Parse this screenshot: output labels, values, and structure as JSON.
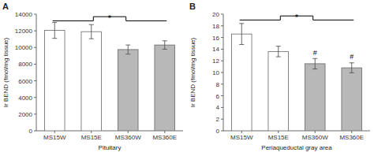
{
  "chart_data": [
    {
      "type": "bar",
      "title": "A",
      "categories": [
        "MS15W",
        "MS15E",
        "MS360W",
        "MS360E"
      ],
      "values": [
        12050,
        11900,
        9750,
        10300
      ],
      "errors": [
        950,
        850,
        550,
        500
      ],
      "colors": [
        "white",
        "white",
        "#b8b8b8",
        "#b8b8b8"
      ],
      "ylabel": "Ir BEND (fmol/mg tissue)",
      "xlabel": "Pituitary",
      "ylim": [
        0,
        14000
      ],
      "yticks": [
        0,
        2000,
        4000,
        6000,
        8000,
        10000,
        12000,
        14000
      ],
      "bracket": {
        "text": "*",
        "y_low": 13200,
        "y_high": 13700
      }
    },
    {
      "type": "bar",
      "title": "B",
      "categories": [
        "MS15W",
        "MS15E",
        "MS360W",
        "MS360E"
      ],
      "values": [
        16.6,
        13.6,
        11.5,
        10.8
      ],
      "errors": [
        1.8,
        0.9,
        0.9,
        0.85
      ],
      "colors": [
        "white",
        "white",
        "#b8b8b8",
        "#b8b8b8"
      ],
      "ylabel": "Ir BEND (fmol/mg tissue)",
      "xlabel": "Periaqueductal gray area",
      "ylim": [
        0,
        20
      ],
      "yticks": [
        0,
        2,
        4,
        6,
        8,
        10,
        12,
        14,
        16,
        18,
        20
      ],
      "bracket": {
        "text": "*",
        "y_low": 19.0,
        "y_high": 19.7
      },
      "annotations": [
        {
          "text": "#",
          "category": "MS360W"
        },
        {
          "text": "#",
          "category": "MS360E"
        }
      ]
    }
  ]
}
